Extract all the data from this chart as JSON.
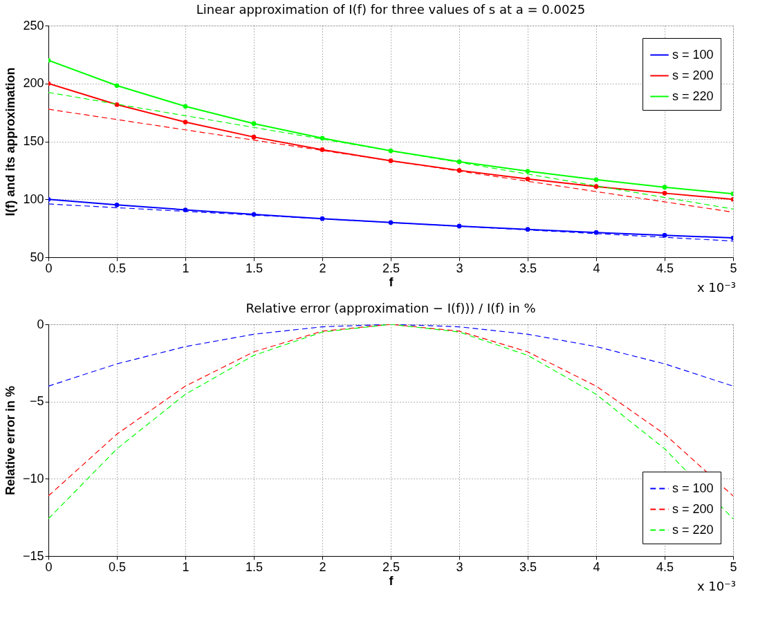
{
  "chart_data": [
    {
      "type": "line",
      "title": "Linear approximation of I(f) for three values of s at a = 0.0025",
      "xlabel": "f",
      "ylabel": "I(f) and its approximation",
      "x": [
        0,
        0.5,
        1,
        1.5,
        2,
        2.5,
        3,
        3.5,
        4,
        4.5,
        5
      ],
      "series": [
        {
          "name": "s = 100",
          "color": "#0000ff",
          "line_style": "solid",
          "marker": "circle",
          "values": [
            100,
            95.2,
            90.9,
            87,
            83.3,
            80,
            76.9,
            74.1,
            71.4,
            69,
            66.7
          ]
        },
        {
          "name": "s = 200",
          "color": "#ff0000",
          "line_style": "solid",
          "marker": "circle",
          "values": [
            200,
            181.8,
            166.7,
            153.8,
            142.9,
            133.3,
            125,
            117.6,
            111.1,
            105.3,
            100
          ]
        },
        {
          "name": "s = 220",
          "color": "#00ff00",
          "line_style": "solid",
          "marker": "circle",
          "values": [
            220,
            198.2,
            180.3,
            165.4,
            152.8,
            141.9,
            132.5,
            124.3,
            117,
            110.5,
            104.8
          ]
        },
        {
          "color": "#0000ff",
          "line_style": "dashed",
          "marker": "none",
          "values": [
            96,
            92.8,
            89.6,
            86.4,
            83.2,
            80,
            76.8,
            73.6,
            70.4,
            67.2,
            64
          ]
        },
        {
          "color": "#ff0000",
          "line_style": "dashed",
          "marker": "none",
          "values": [
            177.8,
            168.9,
            160,
            151.1,
            142.2,
            133.3,
            124.4,
            115.6,
            106.7,
            97.8,
            88.9
          ]
        },
        {
          "color": "#00ff00",
          "line_style": "dashed",
          "marker": "none",
          "values": [
            192.3,
            182.2,
            172.2,
            162.1,
            152,
            141.9,
            131.9,
            121.8,
            111.7,
            101.6,
            91.6
          ]
        }
      ],
      "xlim": [
        0,
        5
      ],
      "xticks": [
        0,
        0.5,
        1,
        1.5,
        2,
        2.5,
        3,
        3.5,
        4,
        4.5,
        5
      ],
      "ylim": [
        50,
        250
      ],
      "yticks": [
        50,
        100,
        150,
        200,
        250
      ],
      "annotations": [
        "x 10⁻³"
      ],
      "grid": true,
      "legend": "top right"
    },
    {
      "type": "line",
      "title": "Relative error (approximation − I(f))) / I(f) in %",
      "xlabel": "f",
      "ylabel": "Relative error in %",
      "x": [
        0,
        0.5,
        1,
        1.5,
        2,
        2.5,
        3,
        3.5,
        4,
        4.5,
        5
      ],
      "series": [
        {
          "name": "s = 100",
          "color": "#0000ff",
          "values": [
            -4,
            -2.56,
            -1.44,
            -0.64,
            -0.16,
            0,
            -0.16,
            -0.64,
            -1.44,
            -2.56,
            -4
          ]
        },
        {
          "name": "s = 200",
          "color": "#ff0000",
          "values": [
            -11.11,
            -7.11,
            -4,
            -1.78,
            -0.44,
            0,
            -0.44,
            -1.78,
            -4,
            -7.11,
            -11.11
          ]
        },
        {
          "name": "s = 220",
          "color": "#00ff00",
          "values": [
            -12.59,
            -8.06,
            -4.53,
            -2.01,
            -0.5,
            0,
            -0.5,
            -2.01,
            -4.53,
            -8.06,
            -12.59
          ]
        }
      ],
      "xlim": [
        0,
        5
      ],
      "xticks": [
        0,
        0.5,
        1,
        1.5,
        2,
        2.5,
        3,
        3.5,
        4,
        4.5,
        5
      ],
      "ylim": [
        -15,
        0
      ],
      "yticks": [
        {
          "value": -15,
          "label": "−15"
        },
        {
          "value": -10,
          "label": "−10"
        },
        {
          "value": -5,
          "label": "−5"
        },
        0
      ],
      "annotations": [
        "x 10⁻³"
      ],
      "grid": true,
      "legend": "bottom right",
      "line_style": "dashed",
      "marker": "none"
    }
  ]
}
